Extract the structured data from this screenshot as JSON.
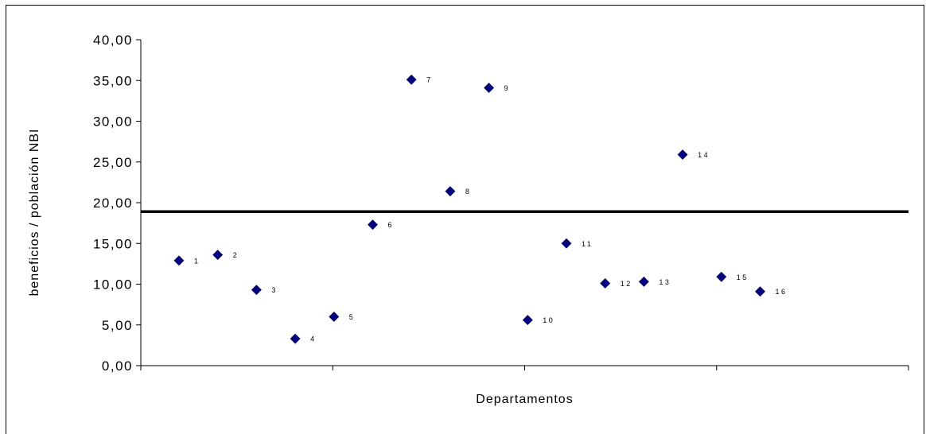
{
  "chart_data": {
    "type": "scatter",
    "title": "",
    "xlabel": "Departamentos",
    "ylabel": "beneficios / población NBI",
    "ylim": [
      0,
      40
    ],
    "yticks": [
      "0,00",
      "5,00",
      "10,00",
      "15,00",
      "20,00",
      "25,00",
      "30,00",
      "35,00",
      "40,00"
    ],
    "x_ticks_count": 4,
    "reference_line": {
      "y": 18.9
    },
    "grid": false,
    "legend": "none",
    "marker_color": "#000080",
    "points": [
      {
        "x": 1,
        "y": 12.9,
        "label": "1"
      },
      {
        "x": 2,
        "y": 13.6,
        "label": "2"
      },
      {
        "x": 3,
        "y": 9.3,
        "label": "3"
      },
      {
        "x": 4,
        "y": 3.3,
        "label": "4"
      },
      {
        "x": 5,
        "y": 6.0,
        "label": "5"
      },
      {
        "x": 6,
        "y": 17.3,
        "label": "6"
      },
      {
        "x": 7,
        "y": 35.1,
        "label": "7"
      },
      {
        "x": 8,
        "y": 21.4,
        "label": "8"
      },
      {
        "x": 9,
        "y": 34.1,
        "label": "9"
      },
      {
        "x": 10,
        "y": 5.6,
        "label": "10"
      },
      {
        "x": 11,
        "y": 15.0,
        "label": "11"
      },
      {
        "x": 12,
        "y": 10.1,
        "label": "12"
      },
      {
        "x": 13,
        "y": 10.3,
        "label": "13"
      },
      {
        "x": 14,
        "y": 25.9,
        "label": "14"
      },
      {
        "x": 15,
        "y": 10.9,
        "label": "15"
      },
      {
        "x": 16,
        "y": 9.1,
        "label": "16"
      }
    ]
  }
}
